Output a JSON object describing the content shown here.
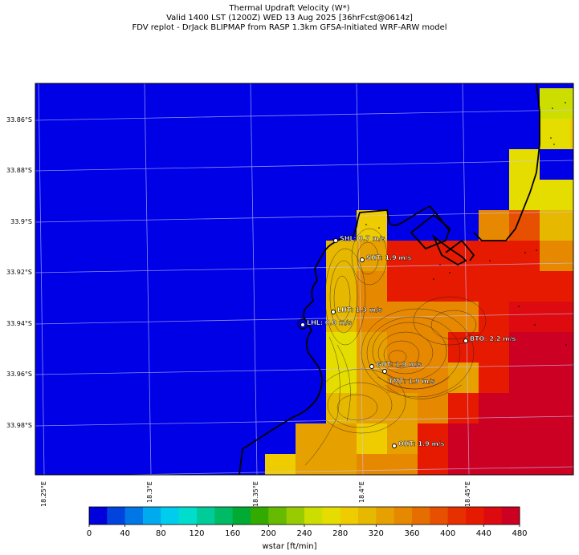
{
  "title": {
    "line1": "Thermal Updraft Velocity (W*)",
    "line2": "Valid 1400 LST (1200Z) WED 13 Aug 2025 [36hrFcst@0614z]",
    "line3": "FDV replot - DrJack BLIPMAP from RASP 1.3km GFSA-Initiated WRF-ARW model"
  },
  "map": {
    "lat_labels": [
      "33.86°S",
      "33.88°S",
      "33.9°S",
      "33.92°S",
      "33.94°S",
      "33.96°S",
      "33.98°S"
    ],
    "lon_labels": [
      "18.25°E",
      "18.3°E",
      "18.35°E",
      "18.4°E",
      "18.45°E"
    ],
    "sites": [
      {
        "code": "SHL",
        "label": "SHL: 0.7 m/s",
        "value": 0.7
      },
      {
        "code": "SHT",
        "label": "SHT: 1.9 m/s",
        "value": 1.9
      },
      {
        "code": "LHT",
        "label": "LHT: 1.3 m/s",
        "value": 1.3
      },
      {
        "code": "LHL",
        "label": "LHL: 0.0 m/s",
        "value": 0.0
      },
      {
        "code": "BTO",
        "label": "BTO: 2.2 m/s",
        "value": 2.2
      },
      {
        "code": "GUT",
        "label": "GUT: 1.9 m/s",
        "value": 1.9
      },
      {
        "code": "TMT",
        "label": "TMT: 1.9 m/s",
        "value": 1.9
      },
      {
        "code": "OHT",
        "label": "OHT: 1.9 m/s",
        "value": 1.9
      }
    ]
  },
  "colorbar": {
    "title": "wstar [ft/min]",
    "tick_labels": [
      "0",
      "40",
      "80",
      "120",
      "160",
      "200",
      "240",
      "280",
      "320",
      "360",
      "400",
      "440",
      "480"
    ],
    "colors": [
      "#0000dd",
      "#0044dd",
      "#0077e6",
      "#00aaee",
      "#00ccee",
      "#00ddcc",
      "#00cc99",
      "#00bb66",
      "#00aa33",
      "#33aa00",
      "#66bb00",
      "#99cc00",
      "#ccdd00",
      "#e6dd00",
      "#eecc00",
      "#e6b800",
      "#e6a000",
      "#e68800",
      "#e66e00",
      "#e65000",
      "#e63000",
      "#e61a00",
      "#dd0a10",
      "#cc0022"
    ]
  }
}
